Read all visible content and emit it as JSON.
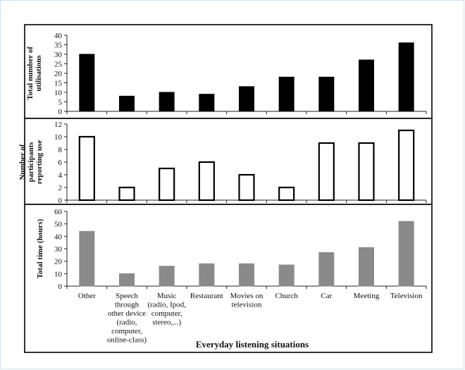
{
  "chart_data": [
    {
      "type": "bar",
      "ylabel": [
        "Total number of",
        "utilisations"
      ],
      "ylim": [
        0,
        40
      ],
      "yticks": [
        0,
        5,
        10,
        15,
        20,
        25,
        30,
        35,
        40
      ],
      "bar_fill": "#000000",
      "bar_stroke": "#000000",
      "values": [
        30,
        8,
        10,
        9,
        13,
        18,
        18,
        27,
        36
      ]
    },
    {
      "type": "bar",
      "ylabel": [
        "Number of",
        "participants",
        "reporting use"
      ],
      "ylim": [
        0,
        12
      ],
      "yticks": [
        0,
        2,
        4,
        6,
        8,
        10,
        12
      ],
      "bar_fill": "#ffffff",
      "bar_stroke": "#000000",
      "values": [
        10,
        2,
        5,
        6,
        4,
        2,
        9,
        9,
        11
      ]
    },
    {
      "type": "bar",
      "ylabel": [
        "Total time (hours)"
      ],
      "ylim": [
        0,
        60
      ],
      "yticks": [
        0,
        10,
        20,
        30,
        40,
        50,
        60
      ],
      "bar_fill": "#8a8a8a",
      "bar_stroke": "#8a8a8a",
      "values": [
        44,
        10,
        16,
        18,
        18,
        17,
        27,
        31,
        52
      ]
    }
  ],
  "categories": [
    [
      "Other"
    ],
    [
      "Speech",
      "through",
      "other device",
      "(radio,",
      "computer,",
      "online-class)"
    ],
    [
      "Music",
      "(radio, Ipod,",
      "computer,",
      "stereo,...)"
    ],
    [
      "Restaurant"
    ],
    [
      "Movies on",
      "television"
    ],
    [
      "Church"
    ],
    [
      "Car"
    ],
    [
      "Meeting"
    ],
    [
      "Television"
    ]
  ],
  "xlabel": "Everyday listening situations"
}
